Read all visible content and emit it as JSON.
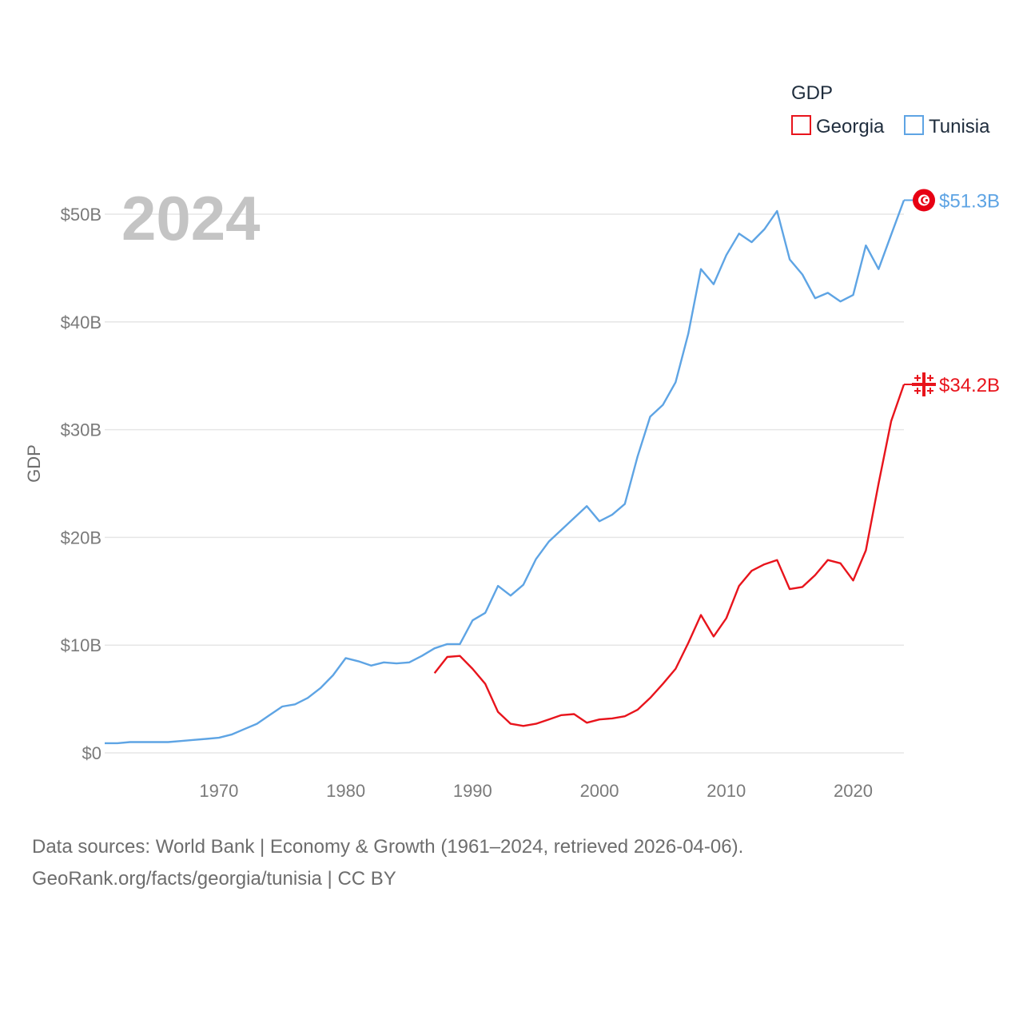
{
  "chart_data": {
    "type": "line",
    "year_label": "2024",
    "ylabel": "GDP",
    "legend_title": "GDP",
    "ylim": [
      0,
      55000000000
    ],
    "xlim": [
      1961,
      2024
    ],
    "y_ticks": [
      {
        "value": 0,
        "label": "$0"
      },
      {
        "value": 10000000000,
        "label": "$10B"
      },
      {
        "value": 20000000000,
        "label": "$20B"
      },
      {
        "value": 30000000000,
        "label": "$30B"
      },
      {
        "value": 40000000000,
        "label": "$40B"
      },
      {
        "value": 50000000000,
        "label": "$50B"
      }
    ],
    "x_ticks": [
      {
        "value": 1970,
        "label": "1970"
      },
      {
        "value": 1980,
        "label": "1980"
      },
      {
        "value": 1990,
        "label": "1990"
      },
      {
        "value": 2000,
        "label": "2000"
      },
      {
        "value": 2010,
        "label": "2010"
      },
      {
        "value": 2020,
        "label": "2020"
      }
    ],
    "series": [
      {
        "name": "Georgia",
        "color": "#e8141c",
        "end_label": "$34.2B",
        "icon": "georgia-flag-icon",
        "x": [
          1987,
          1988,
          1989,
          1990,
          1991,
          1992,
          1993,
          1994,
          1995,
          1996,
          1997,
          1998,
          1999,
          2000,
          2001,
          2002,
          2003,
          2004,
          2005,
          2006,
          2007,
          2008,
          2009,
          2010,
          2011,
          2012,
          2013,
          2014,
          2015,
          2016,
          2017,
          2018,
          2019,
          2020,
          2021,
          2022,
          2023,
          2024
        ],
        "y_billion": [
          7.4,
          8.9,
          9.0,
          7.8,
          6.4,
          3.8,
          2.7,
          2.5,
          2.7,
          3.1,
          3.5,
          3.6,
          2.8,
          3.1,
          3.2,
          3.4,
          4.0,
          5.1,
          6.4,
          7.8,
          10.2,
          12.8,
          10.8,
          12.5,
          15.5,
          16.9,
          17.5,
          17.9,
          15.2,
          15.4,
          16.5,
          17.9,
          17.6,
          16.0,
          18.8,
          25.0,
          30.8,
          34.2
        ]
      },
      {
        "name": "Tunisia",
        "color": "#5ea4e4",
        "end_label": "$51.3B",
        "icon": "tunisia-flag-icon",
        "x": [
          1961,
          1962,
          1963,
          1964,
          1965,
          1966,
          1967,
          1968,
          1969,
          1970,
          1971,
          1972,
          1973,
          1974,
          1975,
          1976,
          1977,
          1978,
          1979,
          1980,
          1981,
          1982,
          1983,
          1984,
          1985,
          1986,
          1987,
          1988,
          1989,
          1990,
          1991,
          1992,
          1993,
          1994,
          1995,
          1996,
          1997,
          1998,
          1999,
          2000,
          2001,
          2002,
          2003,
          2004,
          2005,
          2006,
          2007,
          2008,
          2009,
          2010,
          2011,
          2012,
          2013,
          2014,
          2015,
          2016,
          2017,
          2018,
          2019,
          2020,
          2021,
          2022,
          2023,
          2024
        ],
        "y_billion": [
          0.9,
          0.9,
          1.0,
          1.0,
          1.0,
          1.0,
          1.1,
          1.2,
          1.3,
          1.4,
          1.7,
          2.2,
          2.7,
          3.5,
          4.3,
          4.5,
          5.1,
          6.0,
          7.2,
          8.8,
          8.5,
          8.1,
          8.4,
          8.3,
          8.4,
          9.0,
          9.7,
          10.1,
          10.1,
          12.3,
          13.0,
          15.5,
          14.6,
          15.6,
          18.0,
          19.6,
          20.7,
          21.8,
          22.9,
          21.5,
          22.1,
          23.1,
          27.5,
          31.2,
          32.3,
          34.4,
          38.9,
          44.9,
          43.5,
          46.2,
          48.2,
          47.4,
          48.6,
          50.3,
          45.8,
          44.4,
          42.2,
          42.7,
          41.9,
          42.5,
          47.1,
          44.9,
          48.1,
          51.3
        ]
      }
    ]
  },
  "footer": {
    "line1": "Data sources: World Bank | Economy & Growth (1961–2024, retrieved 2026-04-06).",
    "line2": "GeoRank.org/facts/georgia/tunisia | CC BY"
  }
}
